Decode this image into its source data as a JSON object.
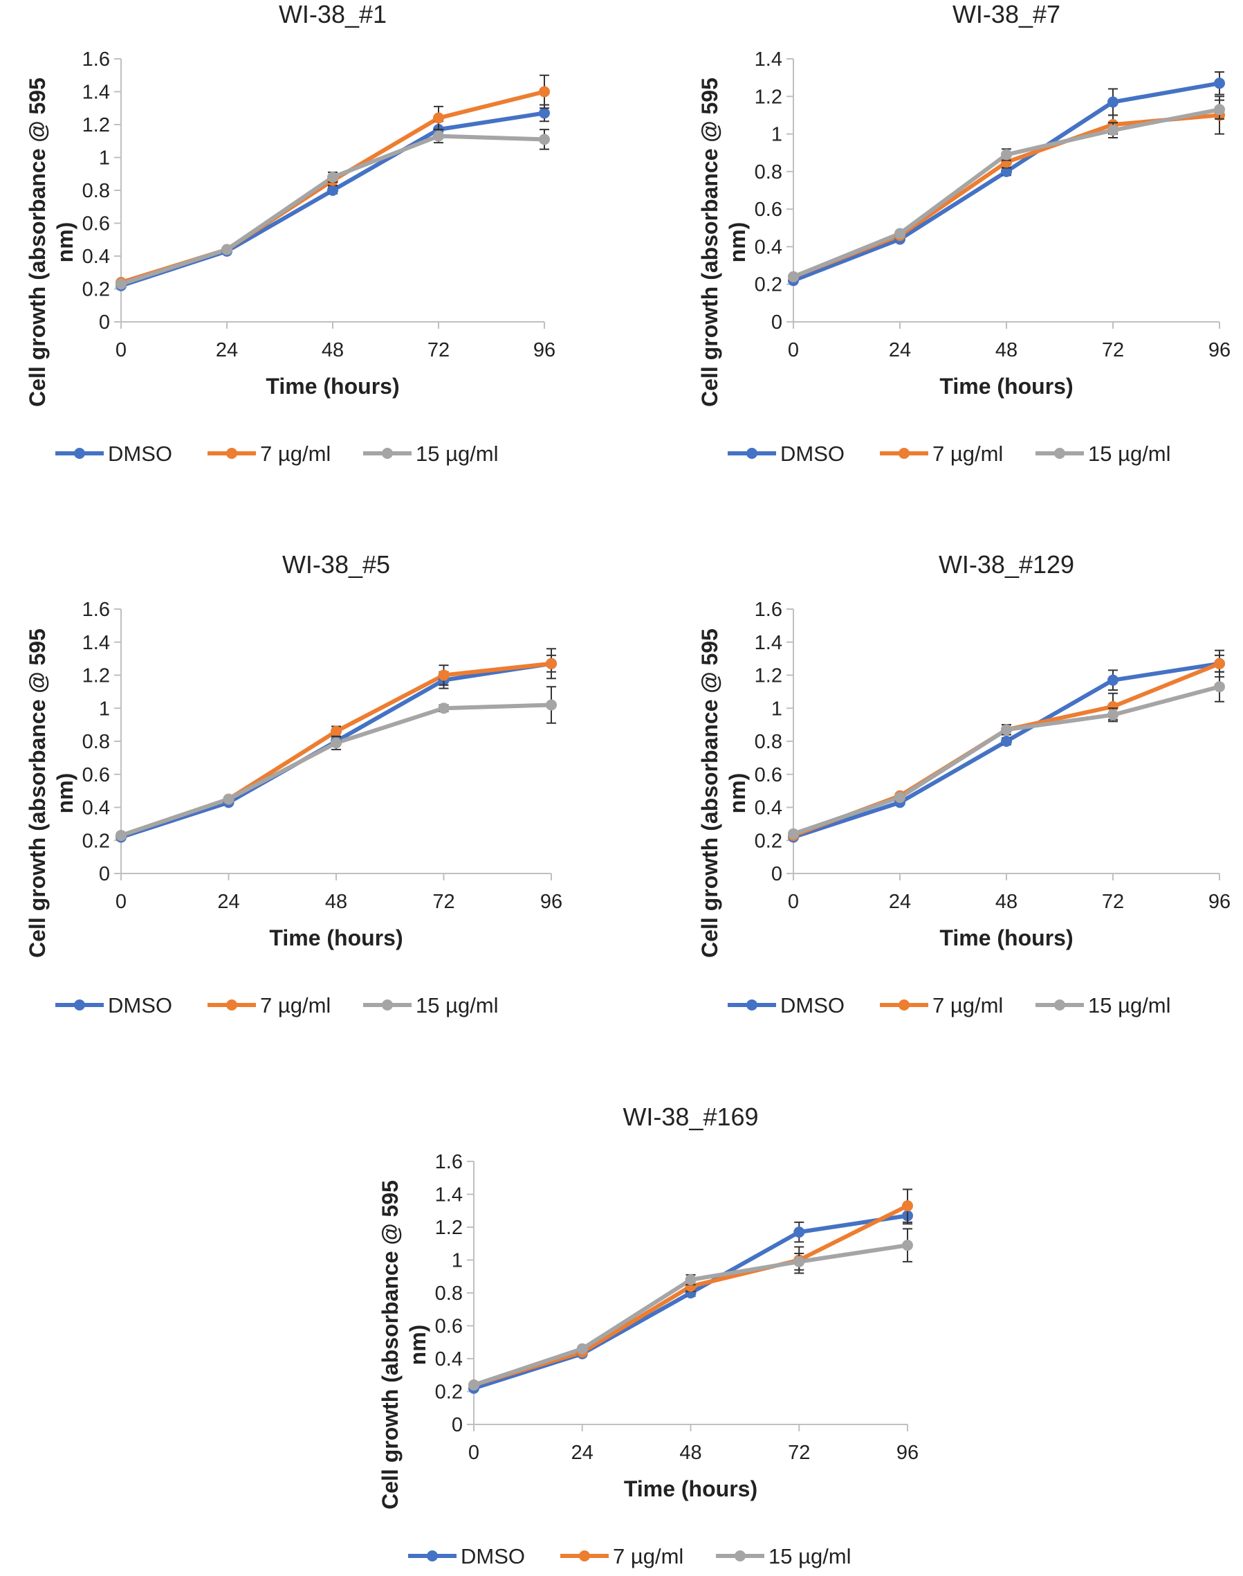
{
  "figure": {
    "legend_labels": [
      "DMSO",
      "7 µg/ml",
      "15 µg/ml"
    ],
    "series_colors": [
      "#4472c4",
      "#ed7d31",
      "#a5a5a5"
    ]
  },
  "chart_data": [
    {
      "type": "line",
      "title": "WI-38_#1",
      "xlabel": "Time (hours)",
      "ylabel": "Cell growth (absorbance @ 595 nm)",
      "x": [
        0,
        24,
        48,
        72,
        96
      ],
      "ylim": [
        0,
        1.6
      ],
      "yticks": [
        0,
        0.2,
        0.4,
        0.6,
        0.8,
        1,
        1.2,
        1.4,
        1.6
      ],
      "series": [
        {
          "name": "DMSO",
          "values": [
            0.22,
            0.43,
            0.8,
            1.17,
            1.27
          ],
          "errors": [
            0.01,
            0.01,
            0.02,
            0.05,
            0.05
          ]
        },
        {
          "name": "7 µg/ml",
          "values": [
            0.24,
            0.44,
            0.86,
            1.24,
            1.4
          ],
          "errors": [
            0.01,
            0.01,
            0.03,
            0.07,
            0.1
          ]
        },
        {
          "name": "15 µg/ml",
          "values": [
            0.23,
            0.44,
            0.88,
            1.13,
            1.11
          ],
          "errors": [
            0.01,
            0.01,
            0.03,
            0.04,
            0.06
          ]
        }
      ]
    },
    {
      "type": "line",
      "title": "WI-38_#7",
      "xlabel": "Time (hours)",
      "ylabel": "Cell growth (absorbance @ 595 nm)",
      "x": [
        0,
        24,
        48,
        72,
        96
      ],
      "ylim": [
        0,
        1.4
      ],
      "yticks": [
        0,
        0.2,
        0.4,
        0.6,
        0.8,
        1,
        1.2,
        1.4
      ],
      "series": [
        {
          "name": "DMSO",
          "values": [
            0.22,
            0.44,
            0.8,
            1.17,
            1.27
          ],
          "errors": [
            0.01,
            0.01,
            0.02,
            0.07,
            0.06
          ]
        },
        {
          "name": "7 µg/ml",
          "values": [
            0.24,
            0.46,
            0.85,
            1.05,
            1.1
          ],
          "errors": [
            0.01,
            0.01,
            0.03,
            0.05,
            0.1
          ]
        },
        {
          "name": "15 µg/ml",
          "values": [
            0.24,
            0.47,
            0.89,
            1.02,
            1.13
          ],
          "errors": [
            0.01,
            0.01,
            0.03,
            0.04,
            0.05
          ]
        }
      ]
    },
    {
      "type": "line",
      "title": "WI-38_#5",
      "xlabel": "Time (hours)",
      "ylabel": "Cell growth (absorbance @ 595 nm)",
      "x": [
        0,
        24,
        48,
        72,
        96
      ],
      "ylim": [
        0,
        1.6
      ],
      "yticks": [
        0,
        0.2,
        0.4,
        0.6,
        0.8,
        1,
        1.2,
        1.4,
        1.6
      ],
      "series": [
        {
          "name": "DMSO",
          "values": [
            0.22,
            0.43,
            0.8,
            1.17,
            1.27
          ],
          "errors": [
            0.01,
            0.01,
            0.02,
            0.05,
            0.05
          ]
        },
        {
          "name": "7 µg/ml",
          "values": [
            0.23,
            0.45,
            0.86,
            1.2,
            1.27
          ],
          "errors": [
            0.01,
            0.01,
            0.03,
            0.06,
            0.09
          ]
        },
        {
          "name": "15 µg/ml",
          "values": [
            0.23,
            0.45,
            0.79,
            1.0,
            1.02
          ],
          "errors": [
            0.01,
            0.01,
            0.04,
            0.02,
            0.11
          ]
        }
      ]
    },
    {
      "type": "line",
      "title": "WI-38_#129",
      "xlabel": "Time (hours)",
      "ylabel": "Cell growth (absorbance @ 595 nm)",
      "x": [
        0,
        24,
        48,
        72,
        96
      ],
      "ylim": [
        0,
        1.6
      ],
      "yticks": [
        0,
        0.2,
        0.4,
        0.6,
        0.8,
        1,
        1.2,
        1.4,
        1.6
      ],
      "series": [
        {
          "name": "DMSO",
          "values": [
            0.22,
            0.43,
            0.8,
            1.17,
            1.27
          ],
          "errors": [
            0.01,
            0.01,
            0.02,
            0.06,
            0.05
          ]
        },
        {
          "name": "7 µg/ml",
          "values": [
            0.23,
            0.47,
            0.87,
            1.01,
            1.27
          ],
          "errors": [
            0.01,
            0.01,
            0.03,
            0.08,
            0.08
          ]
        },
        {
          "name": "15 µg/ml",
          "values": [
            0.24,
            0.46,
            0.87,
            0.96,
            1.13
          ],
          "errors": [
            0.01,
            0.01,
            0.03,
            0.04,
            0.09
          ]
        }
      ]
    },
    {
      "type": "line",
      "title": "WI-38_#169",
      "xlabel": "Time (hours)",
      "ylabel": "Cell growth (absorbance @ 595 nm)",
      "x": [
        0,
        24,
        48,
        72,
        96
      ],
      "ylim": [
        0,
        1.6
      ],
      "yticks": [
        0,
        0.2,
        0.4,
        0.6,
        0.8,
        1,
        1.2,
        1.4,
        1.6
      ],
      "series": [
        {
          "name": "DMSO",
          "values": [
            0.22,
            0.43,
            0.8,
            1.17,
            1.27
          ],
          "errors": [
            0.01,
            0.01,
            0.02,
            0.06,
            0.05
          ]
        },
        {
          "name": "7 µg/ml",
          "values": [
            0.24,
            0.44,
            0.84,
            1.0,
            1.33
          ],
          "errors": [
            0.01,
            0.01,
            0.03,
            0.08,
            0.1
          ]
        },
        {
          "name": "15 µg/ml",
          "values": [
            0.24,
            0.46,
            0.88,
            0.99,
            1.09
          ],
          "errors": [
            0.01,
            0.01,
            0.03,
            0.05,
            0.1
          ]
        }
      ]
    }
  ]
}
